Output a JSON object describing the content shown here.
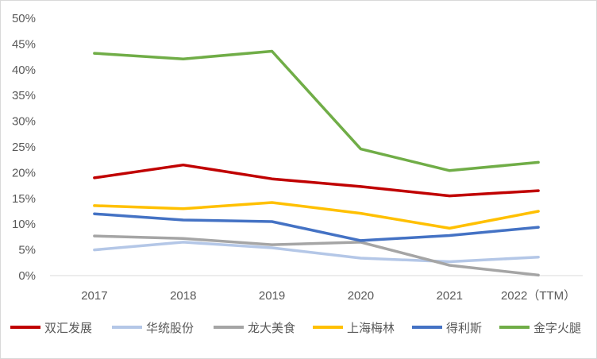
{
  "chart_data": {
    "type": "line",
    "categories": [
      "2017",
      "2018",
      "2019",
      "2020",
      "2021",
      "2022（TTM）"
    ],
    "ylim": [
      0,
      50
    ],
    "y_ticks": [
      "0%",
      "5%",
      "10%",
      "15%",
      "20%",
      "25%",
      "30%",
      "35%",
      "40%",
      "45%",
      "50%"
    ],
    "y_unit": "%",
    "grid": false,
    "legend_position": "bottom",
    "series": [
      {
        "name": "双汇发展",
        "color": "#c00000",
        "values": [
          19.0,
          21.5,
          18.8,
          17.3,
          15.5,
          16.5
        ]
      },
      {
        "name": "华统股份",
        "color": "#b4c7e7",
        "values": [
          5.0,
          6.5,
          5.4,
          3.4,
          2.7,
          3.6
        ]
      },
      {
        "name": "龙大美食",
        "color": "#a5a5a5",
        "values": [
          7.7,
          7.2,
          6.0,
          6.5,
          2.0,
          0.1
        ]
      },
      {
        "name": "上海梅林",
        "color": "#ffc000",
        "values": [
          13.6,
          13.0,
          14.2,
          12.1,
          9.2,
          12.5
        ]
      },
      {
        "name": "得利斯",
        "color": "#4472c4",
        "values": [
          12.0,
          10.8,
          10.5,
          6.8,
          7.8,
          9.4
        ]
      },
      {
        "name": "金字火腿",
        "color": "#70ad47",
        "values": [
          43.2,
          42.1,
          43.6,
          24.6,
          20.4,
          22.0
        ]
      }
    ]
  }
}
